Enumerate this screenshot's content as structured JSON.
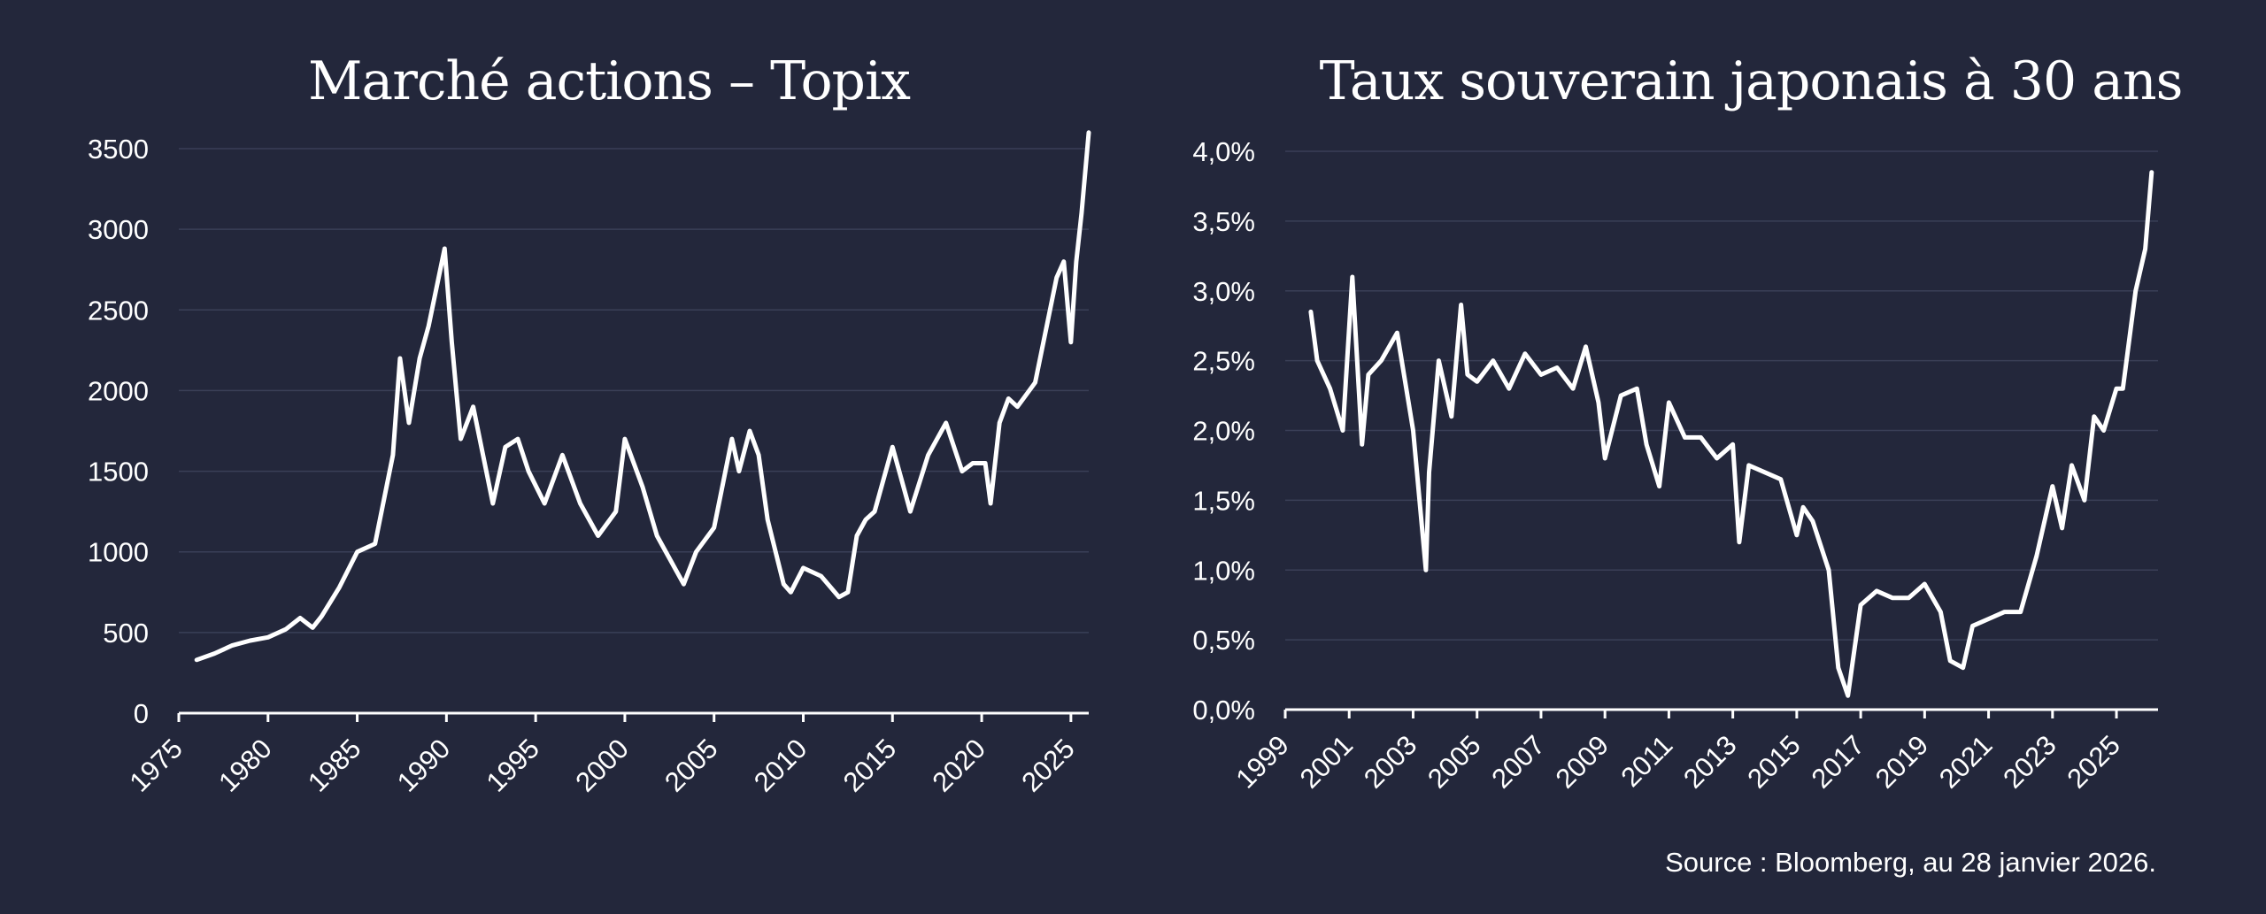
{
  "source": "Source : Bloomberg, au 28 janvier 2026.",
  "colors": {
    "background": "#23273b",
    "line": "#ffffff",
    "grid": "#3a3f57"
  },
  "chart_data": [
    {
      "type": "line",
      "title": "Marché actions – Topix",
      "xlabel": "",
      "ylabel": "",
      "xlim": [
        1975,
        2026
      ],
      "ylim": [
        0,
        3500
      ],
      "x_ticks": [
        1975,
        1980,
        1985,
        1990,
        1995,
        2000,
        2005,
        2010,
        2015,
        2020,
        2025
      ],
      "y_ticks": [
        0,
        500,
        1000,
        1500,
        2000,
        2500,
        3000,
        3500
      ],
      "grid": true,
      "series": [
        {
          "x": [
            1976,
            1977,
            1978,
            1979,
            1980,
            1981,
            1981.8,
            1982.5,
            1983,
            1984,
            1985,
            1986,
            1987,
            1987.4,
            1987.9,
            1988.5,
            1989,
            1989.9,
            1990.3,
            1990.8,
            1991.5,
            1992.6,
            1993.3,
            1994,
            1994.6,
            1995.5,
            1996.5,
            1997.5,
            1998.5,
            1999.5,
            2000,
            2001,
            2001.8,
            2003.3,
            2004,
            2005,
            2006,
            2006.4,
            2007,
            2007.5,
            2008,
            2008.9,
            2009.3,
            2010,
            2011,
            2012,
            2012.5,
            2013,
            2013.5,
            2014,
            2015,
            2015.5,
            2016,
            2017,
            2018,
            2018.9,
            2019.5,
            2020.2,
            2020.5,
            2021,
            2021.5,
            2022,
            2023,
            2024.2,
            2024.6,
            2025,
            2025.3,
            2025.6,
            2026
          ],
          "y": [
            330,
            370,
            420,
            450,
            470,
            520,
            590,
            530,
            600,
            780,
            1000,
            1050,
            1600,
            2200,
            1800,
            2200,
            2400,
            2880,
            2300,
            1700,
            1900,
            1300,
            1650,
            1700,
            1500,
            1300,
            1600,
            1300,
            1100,
            1250,
            1700,
            1400,
            1100,
            800,
            1000,
            1150,
            1700,
            1500,
            1750,
            1600,
            1200,
            800,
            750,
            900,
            850,
            720,
            750,
            1100,
            1200,
            1250,
            1650,
            1450,
            1250,
            1600,
            1800,
            1500,
            1550,
            1550,
            1300,
            1800,
            1950,
            1900,
            2050,
            2700,
            2800,
            2300,
            2800,
            3100,
            3600
          ]
        }
      ]
    },
    {
      "type": "line",
      "title": "Taux souverain japonais à 30 ans",
      "xlabel": "",
      "ylabel": "",
      "xlim": [
        1999,
        2026.3
      ],
      "ylim": [
        0,
        4.0
      ],
      "x_ticks": [
        "1999",
        "2001",
        "2003",
        "2005",
        "2007",
        "2009",
        "2011",
        "2013",
        "2015",
        "2017",
        "2019",
        "2021",
        "2023",
        "2025"
      ],
      "x_tick_values": [
        1999,
        2001,
        2003,
        2005,
        2007,
        2009,
        2011,
        2013,
        2015,
        2017,
        2019,
        2021,
        2023,
        2025
      ],
      "y_ticks": [
        "0,0%",
        "0,5%",
        "1,0%",
        "1,5%",
        "2,0%",
        "2,5%",
        "3,0%",
        "3,5%",
        "4,0%"
      ],
      "y_tick_values": [
        0,
        0.5,
        1.0,
        1.5,
        2.0,
        2.5,
        3.0,
        3.5,
        4.0
      ],
      "grid": true,
      "series": [
        {
          "x": [
            1999.8,
            2000,
            2000.4,
            2000.8,
            2001.1,
            2001.4,
            2001.6,
            2002,
            2002.5,
            2003,
            2003.4,
            2003.5,
            2003.8,
            2004.2,
            2004.5,
            2004.7,
            2005,
            2005.5,
            2006,
            2006.5,
            2007,
            2007.5,
            2008,
            2008.4,
            2008.8,
            2009,
            2009.5,
            2010,
            2010.3,
            2010.7,
            2011,
            2011.5,
            2012,
            2012.5,
            2013,
            2013.2,
            2013.5,
            2014,
            2014.5,
            2015,
            2015.2,
            2015.5,
            2016,
            2016.3,
            2016.6,
            2017,
            2017.5,
            2018,
            2018.5,
            2019,
            2019.5,
            2019.8,
            2020.2,
            2020.5,
            2021,
            2021.5,
            2022,
            2022.5,
            2023,
            2023.3,
            2023.6,
            2024,
            2024.3,
            2024.6,
            2025,
            2025.2,
            2025.6,
            2025.9,
            2026.1
          ],
          "y": [
            2.85,
            2.5,
            2.3,
            2.0,
            3.1,
            1.9,
            2.4,
            2.5,
            2.7,
            2.0,
            1.0,
            1.7,
            2.5,
            2.1,
            2.9,
            2.4,
            2.35,
            2.5,
            2.3,
            2.55,
            2.4,
            2.45,
            2.3,
            2.6,
            2.2,
            1.8,
            2.25,
            2.3,
            1.9,
            1.6,
            2.2,
            1.95,
            1.95,
            1.8,
            1.9,
            1.2,
            1.75,
            1.7,
            1.65,
            1.25,
            1.45,
            1.35,
            1.0,
            0.3,
            0.1,
            0.75,
            0.85,
            0.8,
            0.8,
            0.9,
            0.7,
            0.35,
            0.3,
            0.6,
            0.65,
            0.7,
            0.7,
            1.1,
            1.6,
            1.3,
            1.75,
            1.5,
            2.1,
            2.0,
            2.3,
            2.3,
            3.0,
            3.3,
            3.85
          ]
        }
      ]
    }
  ]
}
